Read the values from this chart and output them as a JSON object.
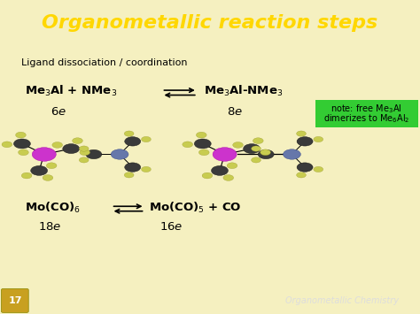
{
  "title": "Organometallic reaction steps",
  "title_color": "#FFD700",
  "title_bg_color": "#2020CC",
  "body_bg_color": "#F5F0C0",
  "footer_bg_color": "#2020CC",
  "footer_text": "Organometallic Chemistry",
  "footer_page": "17",
  "subtitle": "Ligand dissociation / coordination",
  "note_bg": "#33CC33",
  "note_line1": "note: free Me$_3$Al",
  "note_line2": "dimerizes to Me$_6$Al$_2$"
}
